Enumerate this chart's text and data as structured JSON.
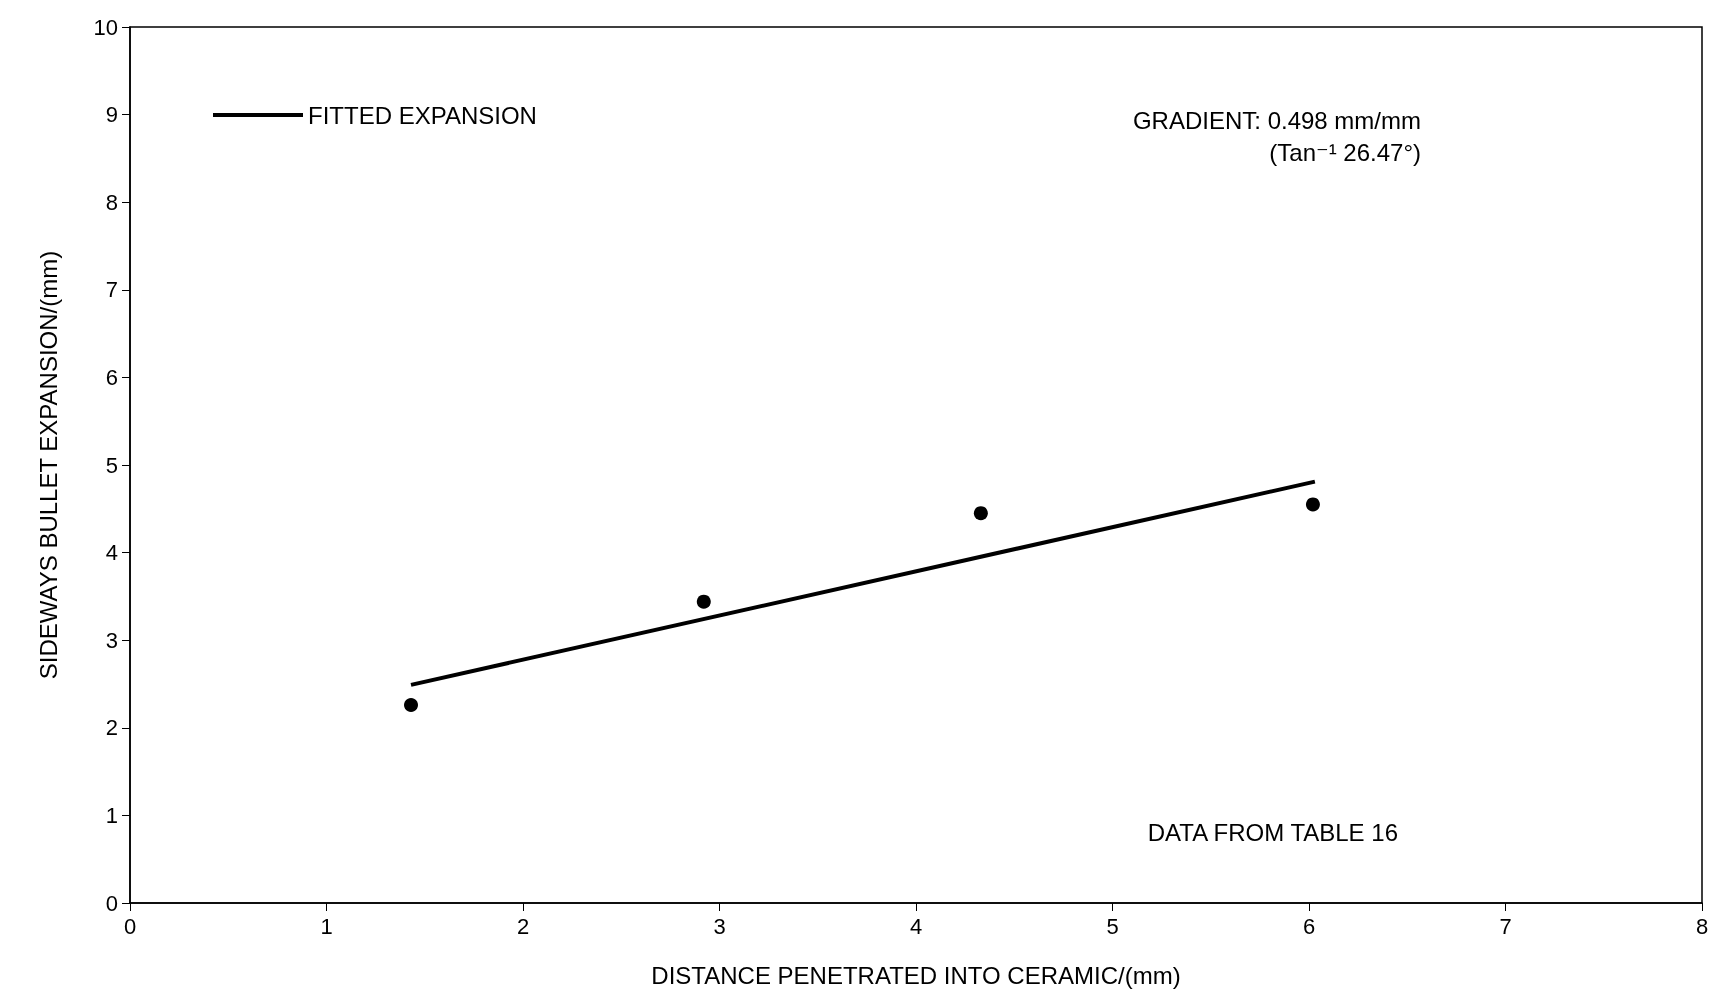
{
  "chart_data": {
    "type": "scatter",
    "xlabel": "DISTANCE PENETRATED INTO CERAMIC/(mm)",
    "ylabel": "SIDEWAYS BULLET EXPANSION/(mm)",
    "x": [
      1.43,
      2.92,
      4.33,
      6.02
    ],
    "series": [
      {
        "color": "#000000",
        "values": [
          2.26,
          3.44,
          4.45,
          4.55
        ],
        "marker": "circle"
      },
      {
        "type": "line",
        "name": "FITTED EXPANSION",
        "color": "#000000",
        "x": [
          1.43,
          6.03
        ],
        "values": [
          2.49,
          4.81
        ],
        "line_style": "solid",
        "marker": "none"
      }
    ],
    "xlim": [
      0,
      8
    ],
    "xticks": [
      0,
      1,
      2,
      3,
      4,
      5,
      6,
      7,
      8
    ],
    "ylim": [
      0,
      10
    ],
    "yticks": [
      0,
      1,
      2,
      3,
      4,
      5,
      6,
      7,
      8,
      9,
      10
    ],
    "annotations": [
      "GRADIENT: 0.498 mm/mm",
      "(Tan⁻¹ 26.47°)",
      "DATA FROM TABLE 16"
    ],
    "grid": false,
    "legend": "top left"
  }
}
